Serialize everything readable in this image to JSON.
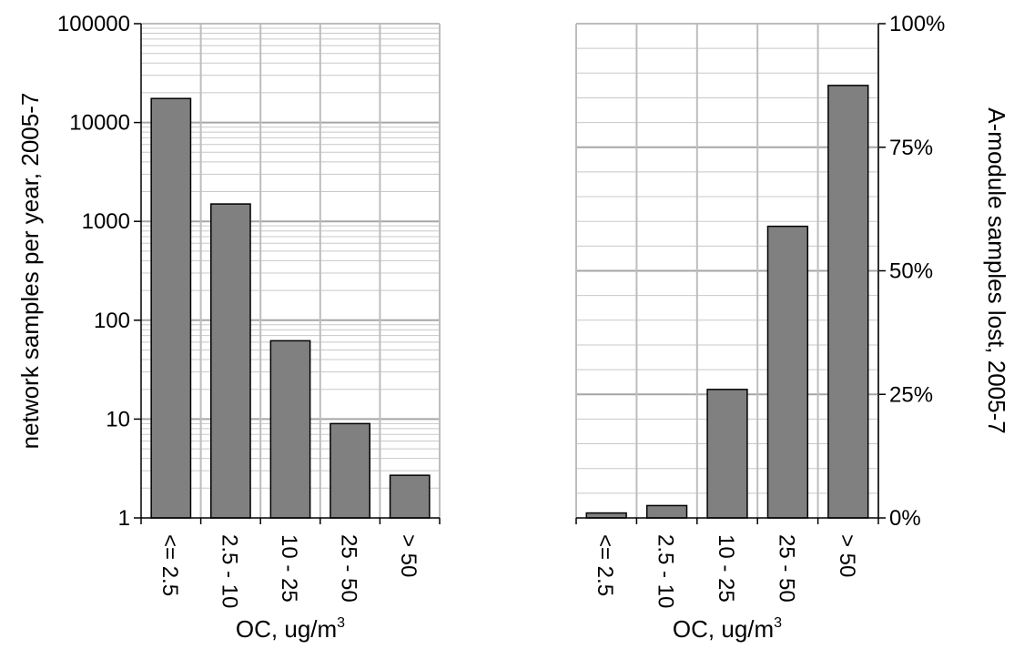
{
  "chart_data": [
    {
      "type": "bar",
      "scale": "log",
      "categories": [
        "<= 2.5",
        "2.5 - 10",
        "10 - 25",
        "25 - 50",
        "> 50"
      ],
      "values": [
        17500,
        1500,
        62,
        9,
        2.7
      ],
      "ylabel": "network samples per year, 2005-7",
      "xlabel": "OC,  ug/m",
      "xlabel_sup": "3",
      "ylim": [
        1,
        100000
      ],
      "yticks": [
        "1",
        "10",
        "100",
        "1000",
        "10000",
        "100000"
      ],
      "grid": true,
      "bar_color": "#808080"
    },
    {
      "type": "bar",
      "scale": "linear",
      "categories": [
        "<= 2.5",
        "2.5 - 10",
        "10 - 25",
        "25 - 50",
        "> 50"
      ],
      "values": [
        0.01,
        0.025,
        0.26,
        0.59,
        0.875
      ],
      "ylabel": "A-module samples lost, 2005-7",
      "xlabel": "OC,  ug/m",
      "xlabel_sup": "3",
      "ylim": [
        0,
        1
      ],
      "yticks": [
        "0%",
        "25%",
        "50%",
        "75%",
        "100%"
      ],
      "grid": true,
      "bar_color": "#808080"
    }
  ]
}
